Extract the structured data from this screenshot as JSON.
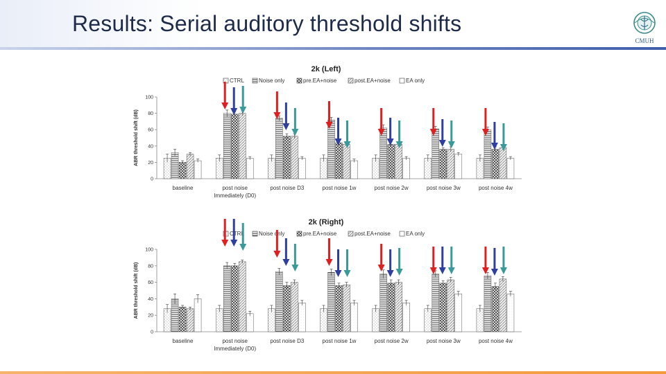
{
  "slide": {
    "title": "Results: Serial auditory threshold shifts",
    "logo_text": "CMUH"
  },
  "colors": {
    "red_arrow": "#e02020",
    "blue_arrow": "#2f3fa0",
    "teal_arrow": "#3a9a9a",
    "accent_rule": "#3f5fab",
    "bottom_rule": "#f39a3c"
  },
  "chart_data": [
    {
      "type": "bar",
      "title": "2k (Left)",
      "ylabel": "ABR threshold shift (dB)",
      "xlabel": "",
      "ylim": [
        0,
        100
      ],
      "yticks": [
        0,
        20,
        40,
        60,
        80,
        100
      ],
      "grid": false,
      "legend_position": "top",
      "categories": [
        "baseline",
        "post noise\nImmediately (D0)",
        "post noise D3",
        "post noise 1w",
        "post noise 2w",
        "post noise 3w",
        "post noise 4w"
      ],
      "series": [
        {
          "name": "CTRL",
          "values": [
            25,
            25,
            25,
            25,
            25,
            25,
            25
          ],
          "errors": [
            5,
            4,
            4,
            4,
            4,
            4,
            4
          ]
        },
        {
          "name": "Noise only",
          "values": [
            32,
            80,
            74,
            72,
            62,
            61,
            60
          ],
          "errors": [
            4,
            4,
            3,
            3,
            4,
            3,
            3
          ]
        },
        {
          "name": "pre.EA+noise",
          "values": [
            20,
            79,
            52,
            44,
            42,
            36,
            36
          ],
          "errors": [
            2,
            3,
            3,
            3,
            3,
            2,
            3
          ]
        },
        {
          "name": "post.EA+noise",
          "values": [
            30,
            80,
            52,
            42,
            42,
            36,
            38
          ],
          "errors": [
            2,
            3,
            3,
            2,
            3,
            3,
            3
          ]
        },
        {
          "name": "EA only",
          "values": [
            22,
            25,
            25,
            22,
            25,
            30,
            25
          ],
          "errors": [
            2,
            2,
            2,
            2,
            2,
            2,
            2
          ]
        }
      ]
    },
    {
      "type": "bar",
      "title": "2k (Right)",
      "ylabel": "ABR threshold shift (dB)",
      "xlabel": "",
      "ylim": [
        0,
        100
      ],
      "yticks": [
        0,
        20,
        40,
        60,
        80,
        100
      ],
      "grid": false,
      "legend_position": "top",
      "categories": [
        "baseline",
        "post noise\nImmediately (D0)",
        "post noise D3",
        "post noise 1w",
        "post noise 2w",
        "post noise 3w",
        "post noise 4w"
      ],
      "series": [
        {
          "name": "CTRL",
          "values": [
            28,
            28,
            28,
            28,
            28,
            28,
            28
          ],
          "errors": [
            5,
            4,
            4,
            4,
            4,
            4,
            4
          ]
        },
        {
          "name": "Noise only",
          "values": [
            40,
            80,
            73,
            72,
            70,
            70,
            68
          ],
          "errors": [
            6,
            4,
            4,
            4,
            5,
            4,
            4
          ]
        },
        {
          "name": "pre.EA+noise",
          "values": [
            30,
            80,
            56,
            56,
            59,
            59,
            55
          ],
          "errors": [
            2,
            3,
            4,
            3,
            4,
            3,
            4
          ]
        },
        {
          "name": "post.EA+noise",
          "values": [
            28,
            85,
            60,
            57,
            60,
            63,
            64
          ],
          "errors": [
            2,
            2,
            3,
            3,
            3,
            3,
            3
          ]
        },
        {
          "name": "EA only",
          "values": [
            40,
            22,
            35,
            35,
            35,
            46,
            46
          ],
          "errors": [
            5,
            3,
            3,
            3,
            3,
            3,
            3
          ]
        }
      ]
    }
  ]
}
